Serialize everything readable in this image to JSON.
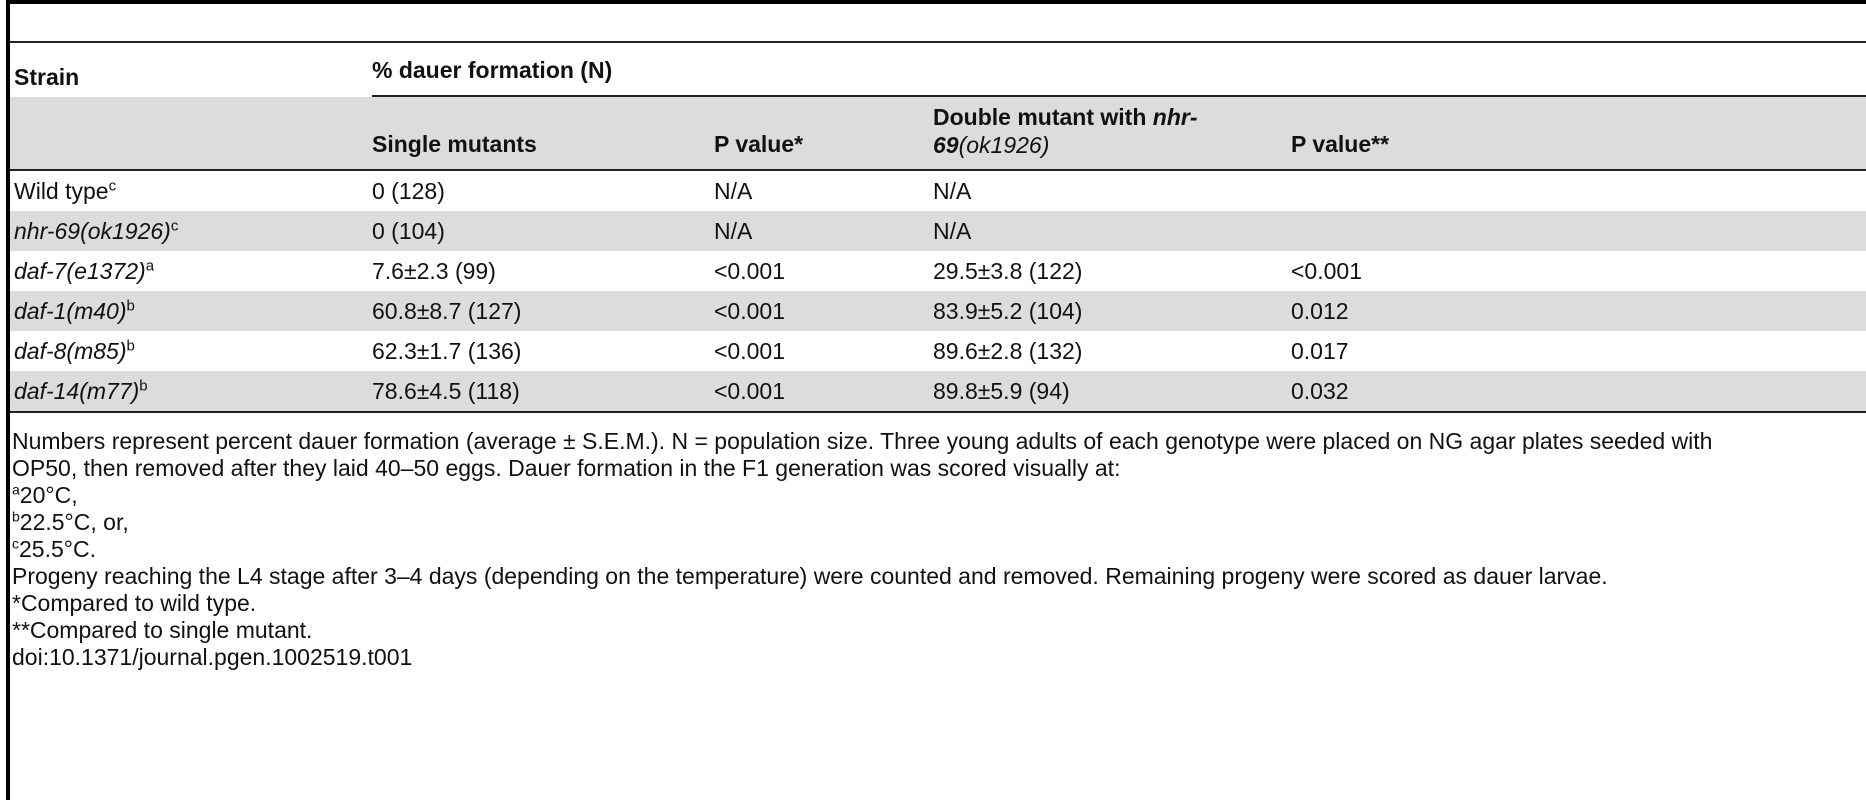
{
  "table": {
    "header": {
      "strain": "Strain",
      "group": "% dauer formation (N)",
      "single": "Single mutants",
      "p1": "P value*",
      "double_prefix": "Double mutant with ",
      "double_gene_line1": "nhr-",
      "double_gene_line2": "69",
      "double_allele": "(ok1926)",
      "p2": "P value**"
    },
    "rows": [
      {
        "strain": "Wild type",
        "sup": "c",
        "italic": false,
        "single": "0 (128)",
        "p1": "N/A",
        "double": "N/A",
        "p2": ""
      },
      {
        "strain": "nhr-69(ok1926)",
        "sup": "c",
        "italic": true,
        "single": "0 (104)",
        "p1": "N/A",
        "double": "N/A",
        "p2": ""
      },
      {
        "strain": "daf-7(e1372)",
        "sup": "a",
        "italic": true,
        "single": "7.6±2.3 (99)",
        "p1": "<0.001",
        "double": "29.5±3.8 (122)",
        "p2": "<0.001"
      },
      {
        "strain": "daf-1(m40)",
        "sup": "b",
        "italic": true,
        "single": "60.8±8.7 (127)",
        "p1": "<0.001",
        "double": "83.9±5.2 (104)",
        "p2": "0.012"
      },
      {
        "strain": "daf-8(m85)",
        "sup": "b",
        "italic": true,
        "single": "62.3±1.7 (136)",
        "p1": "<0.001",
        "double": "89.6±2.8 (132)",
        "p2": "0.017"
      },
      {
        "strain": "daf-14(m77)",
        "sup": "b",
        "italic": true,
        "single": "78.6±4.5 (118)",
        "p1": "<0.001",
        "double": "89.8±5.9 (94)",
        "p2": "0.032"
      }
    ]
  },
  "notes": {
    "line1": "Numbers represent percent dauer formation (average ± S.E.M.). N = population size. Three young adults of each genotype were placed on NG agar plates seeded with",
    "line2": "OP50, then removed after they laid 40–50 eggs. Dauer formation in the F1 generation was scored visually at:",
    "fn_a_mark": "a",
    "fn_a": "20°C,",
    "fn_b_mark": "b",
    "fn_b": "22.5°C, or,",
    "fn_c_mark": "c",
    "fn_c": "25.5°C.",
    "line3": "Progeny reaching the L4 stage after 3–4 days (depending on the temperature) were counted and removed. Remaining progeny were scored as dauer larvae.",
    "star1": "*Compared to wild type.",
    "star2": "**Compared to single mutant.",
    "doi": "doi:10.1371/journal.pgen.1002519.t001"
  }
}
